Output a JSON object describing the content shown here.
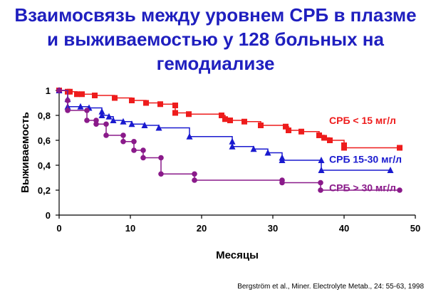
{
  "title": {
    "line1": "Взаимосвязь между уровнем СРБ в плазме",
    "line2": "и выживаемостью у 128 больных на",
    "line3": "гемодиализе"
  },
  "citation": "Bergström et al., Miner. Electrolyte Metab., 24: 55-63, 1998",
  "colors": {
    "title": "#1f1fbf",
    "series_low": "#ee1c1c",
    "series_mid": "#1a1acf",
    "series_high": "#8a1a8a"
  },
  "chart_data": {
    "type": "line",
    "title": "",
    "xlabel": "Месяцы",
    "ylabel": "Выживаемость",
    "xlim": [
      0,
      50
    ],
    "ylim": [
      0,
      1
    ],
    "x_ticks": [
      0,
      10,
      20,
      30,
      40,
      50
    ],
    "y_ticks": [
      0,
      0.2,
      0.4,
      0.6,
      0.8,
      1
    ],
    "x_tick_labels": [
      "0",
      "10",
      "20",
      "30",
      "40",
      "50"
    ],
    "y_tick_labels": [
      "0",
      "0,2",
      "0,4",
      "0,6",
      "0,8",
      "1"
    ],
    "grid": false,
    "step": true,
    "series": [
      {
        "name": "СРБ < 15 мг/л",
        "color": "#ee1c1c",
        "marker": "square",
        "label_at": [
          37.4,
          0.76
        ],
        "points": [
          [
            0,
            1.0
          ],
          [
            1.2,
            0.99
          ],
          [
            1.5,
            0.99
          ],
          [
            2.5,
            0.97
          ],
          [
            3.2,
            0.97
          ],
          [
            5,
            0.96
          ],
          [
            7.8,
            0.94
          ],
          [
            10.2,
            0.92
          ],
          [
            12.2,
            0.9
          ],
          [
            14.2,
            0.89
          ],
          [
            16.3,
            0.88
          ],
          [
            16.3,
            0.82
          ],
          [
            18.2,
            0.81
          ],
          [
            22.8,
            0.8
          ],
          [
            23.3,
            0.77
          ],
          [
            24,
            0.76
          ],
          [
            26,
            0.75
          ],
          [
            28.3,
            0.72
          ],
          [
            31.8,
            0.71
          ],
          [
            32.2,
            0.68
          ],
          [
            34,
            0.67
          ],
          [
            36.5,
            0.64
          ],
          [
            37.2,
            0.62
          ],
          [
            38,
            0.6
          ],
          [
            40,
            0.56
          ],
          [
            40,
            0.54
          ],
          [
            47.8,
            0.54
          ]
        ]
      },
      {
        "name": "СРБ 15-30 мг/л",
        "color": "#1a1acf",
        "marker": "triangle",
        "label_at": [
          37.4,
          0.45
        ],
        "points": [
          [
            0,
            1.0
          ],
          [
            1.2,
            0.93
          ],
          [
            1.2,
            0.87
          ],
          [
            3,
            0.87
          ],
          [
            4.2,
            0.86
          ],
          [
            6,
            0.83
          ],
          [
            6,
            0.8
          ],
          [
            7,
            0.79
          ],
          [
            7.6,
            0.76
          ],
          [
            9,
            0.75
          ],
          [
            10.2,
            0.73
          ],
          [
            12,
            0.72
          ],
          [
            14,
            0.7
          ],
          [
            18.3,
            0.63
          ],
          [
            24.3,
            0.59
          ],
          [
            24.3,
            0.55
          ],
          [
            27.3,
            0.53
          ],
          [
            29.3,
            0.5
          ],
          [
            31.3,
            0.46
          ],
          [
            31.3,
            0.44
          ],
          [
            36.8,
            0.44
          ],
          [
            36.8,
            0.36
          ],
          [
            46.5,
            0.36
          ]
        ]
      },
      {
        "name": "СРБ > 30 мг/л",
        "color": "#8a1a8a",
        "marker": "circle",
        "label_at": [
          37.4,
          0.22
        ],
        "points": [
          [
            0,
            1.0
          ],
          [
            1.2,
            0.92
          ],
          [
            1.2,
            0.84
          ],
          [
            3.9,
            0.84
          ],
          [
            3.9,
            0.76
          ],
          [
            5.2,
            0.76
          ],
          [
            5.2,
            0.73
          ],
          [
            6.6,
            0.73
          ],
          [
            6.6,
            0.64
          ],
          [
            9,
            0.64
          ],
          [
            9,
            0.59
          ],
          [
            10.5,
            0.59
          ],
          [
            10.5,
            0.52
          ],
          [
            11.8,
            0.52
          ],
          [
            11.8,
            0.46
          ],
          [
            14.3,
            0.46
          ],
          [
            14.3,
            0.33
          ],
          [
            19,
            0.33
          ],
          [
            19,
            0.28
          ],
          [
            31.3,
            0.28
          ],
          [
            31.3,
            0.26
          ],
          [
            36.7,
            0.26
          ],
          [
            36.7,
            0.2
          ],
          [
            47.8,
            0.2
          ]
        ]
      }
    ]
  }
}
